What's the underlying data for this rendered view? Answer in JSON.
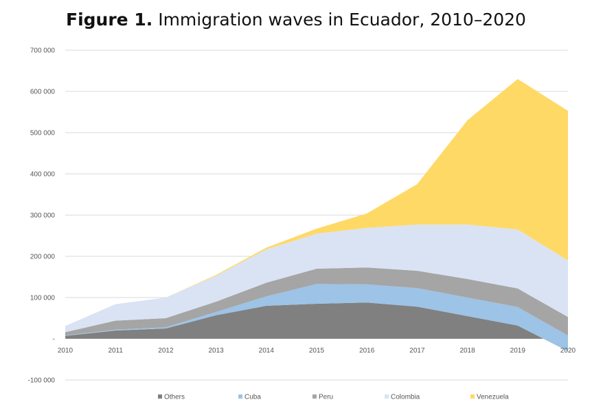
{
  "title": {
    "bold": "Figure 1.",
    "rest": " Immigration waves in Ecuador, 2010–2020"
  },
  "chart_data": {
    "type": "area",
    "stacked": true,
    "categories": [
      "2010",
      "2011",
      "2012",
      "2013",
      "2014",
      "2015",
      "2016",
      "2017",
      "2018",
      "2019",
      "2020"
    ],
    "series": [
      {
        "name": "Others",
        "color": "#808080",
        "values": [
          7000,
          20000,
          25000,
          57000,
          80000,
          85000,
          88000,
          78000,
          55000,
          32000,
          -30000
        ]
      },
      {
        "name": "Cuba",
        "color": "#9DC3E6",
        "values": [
          1000,
          2000,
          3000,
          8000,
          23000,
          48000,
          44000,
          45000,
          45000,
          45000,
          38000
        ]
      },
      {
        "name": "Peru",
        "color": "#A5A5A5",
        "values": [
          8000,
          22000,
          22000,
          25000,
          33000,
          37000,
          41000,
          42000,
          45000,
          45000,
          45000
        ]
      },
      {
        "name": "Colombia",
        "color": "#DAE3F3",
        "values": [
          15000,
          40000,
          50000,
          63000,
          81000,
          85000,
          96000,
          112000,
          132000,
          143000,
          137000
        ]
      },
      {
        "name": "Venezuela",
        "color": "#FFD966",
        "values": [
          0,
          0,
          0,
          2000,
          4000,
          12000,
          35000,
          98000,
          253000,
          365000,
          363000
        ]
      }
    ],
    "y_ticks": [
      {
        "value": -100000,
        "label": "-100 000"
      },
      {
        "value": 0,
        "label": "-"
      },
      {
        "value": 100000,
        "label": "100 000"
      },
      {
        "value": 200000,
        "label": "200 000"
      },
      {
        "value": 300000,
        "label": "300 000"
      },
      {
        "value": 400000,
        "label": "400 000"
      },
      {
        "value": 500000,
        "label": "500 000"
      },
      {
        "value": 600000,
        "label": "600 000"
      },
      {
        "value": 700000,
        "label": "700 000"
      }
    ],
    "ylim": [
      -100000,
      700000
    ],
    "grid": true,
    "legend_position": "bottom"
  }
}
